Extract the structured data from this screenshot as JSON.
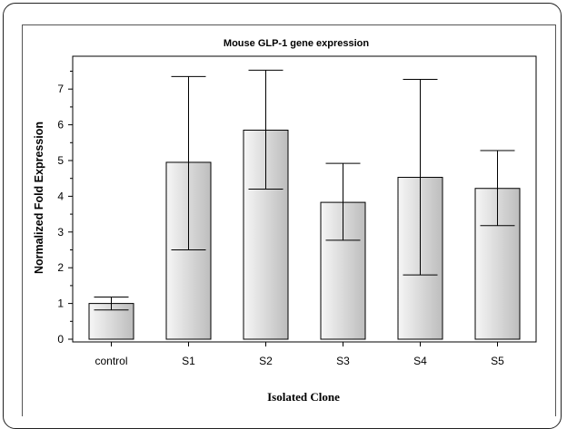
{
  "chart_data": {
    "type": "bar",
    "title": "Mouse GLP-1 gene expression",
    "xlabel": "Isolated Clone",
    "ylabel": "Normalized Fold Expression",
    "categories": [
      "control",
      "S1",
      "S2",
      "S3",
      "S4",
      "S5"
    ],
    "values": [
      1.0,
      4.95,
      5.85,
      3.83,
      4.53,
      4.22
    ],
    "error_low": [
      0.82,
      2.5,
      4.2,
      2.77,
      1.8,
      3.18
    ],
    "error_high": [
      1.18,
      7.35,
      7.53,
      4.92,
      7.27,
      5.28
    ],
    "ylim": [
      0,
      7.9
    ],
    "yticks": [
      "0",
      "1",
      "2",
      "3",
      "4",
      "5",
      "6",
      "7"
    ],
    "grid": false,
    "legend": "none",
    "colors": {
      "bar_light": "#f6f6f6",
      "bar_dark": "#bdbdbd",
      "outline": "#000000"
    }
  }
}
